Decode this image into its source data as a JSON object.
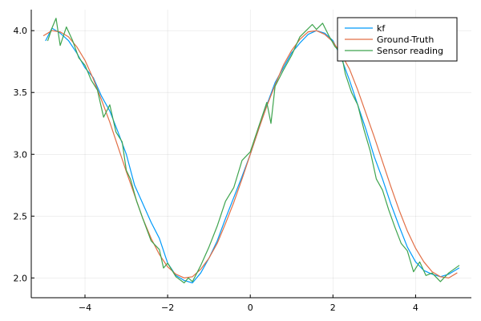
{
  "chart_data": {
    "type": "line",
    "title": "",
    "xlabel": "",
    "ylabel": "",
    "xlim": [
      -5.3,
      5.35
    ],
    "ylim": [
      1.84,
      4.17
    ],
    "grid": true,
    "legend_position": "top-right",
    "x_ticks": [
      {
        "value": -4,
        "label": "−4"
      },
      {
        "value": -2,
        "label": "−2"
      },
      {
        "value": 0,
        "label": "0"
      },
      {
        "value": 2,
        "label": "2"
      },
      {
        "value": 4,
        "label": "4"
      }
    ],
    "y_ticks": [
      {
        "value": 2.0,
        "label": "2.0"
      },
      {
        "value": 2.5,
        "label": "2.5"
      },
      {
        "value": 3.0,
        "label": "3.0"
      },
      {
        "value": 3.5,
        "label": "3.5"
      },
      {
        "value": 4.0,
        "label": "4.0"
      }
    ],
    "series": [
      {
        "name": "kf",
        "color": "#009AFA",
        "x": [
          -4.95,
          -4.8,
          -4.6,
          -4.4,
          -4.2,
          -4.0,
          -3.8,
          -3.6,
          -3.4,
          -3.2,
          -3.0,
          -2.8,
          -2.6,
          -2.4,
          -2.2,
          -2.0,
          -1.8,
          -1.6,
          -1.4,
          -1.2,
          -1.0,
          -0.8,
          -0.6,
          -0.4,
          -0.2,
          0.0,
          0.2,
          0.4,
          0.6,
          0.8,
          1.0,
          1.2,
          1.4,
          1.6,
          1.8,
          2.0,
          2.2,
          2.4,
          2.6,
          2.8,
          3.0,
          3.2,
          3.4,
          3.6,
          3.8,
          4.0,
          4.2,
          4.4,
          4.6,
          4.8,
          5.05
        ],
        "y": [
          3.92,
          4.02,
          3.98,
          3.92,
          3.82,
          3.7,
          3.62,
          3.47,
          3.35,
          3.18,
          3.0,
          2.75,
          2.6,
          2.45,
          2.32,
          2.12,
          2.02,
          1.98,
          1.96,
          2.04,
          2.16,
          2.3,
          2.48,
          2.65,
          2.82,
          3.0,
          3.2,
          3.4,
          3.58,
          3.7,
          3.82,
          3.9,
          3.97,
          4.0,
          3.98,
          3.92,
          3.78,
          3.6,
          3.4,
          3.2,
          2.98,
          2.8,
          2.6,
          2.42,
          2.25,
          2.13,
          2.06,
          2.03,
          2.01,
          2.03,
          2.08
        ]
      },
      {
        "name": "Ground-Truth",
        "color": "#E26F46",
        "x": [
          -5.0,
          -4.8,
          -4.6,
          -4.4,
          -4.2,
          -4.0,
          -3.8,
          -3.6,
          -3.4,
          -3.2,
          -3.0,
          -2.8,
          -2.6,
          -2.4,
          -2.2,
          -2.0,
          -1.8,
          -1.6,
          -1.4,
          -1.2,
          -1.0,
          -0.8,
          -0.6,
          -0.4,
          -0.2,
          0.0,
          0.2,
          0.4,
          0.6,
          0.8,
          1.0,
          1.2,
          1.4,
          1.6,
          1.8,
          2.0,
          2.2,
          2.4,
          2.6,
          2.8,
          3.0,
          3.2,
          3.4,
          3.6,
          3.8,
          4.0,
          4.2,
          4.4,
          4.6,
          4.8,
          5.0
        ],
        "y": [
          3.96,
          4.0,
          3.99,
          3.95,
          3.87,
          3.76,
          3.61,
          3.44,
          3.26,
          3.06,
          2.86,
          2.67,
          2.48,
          2.32,
          2.19,
          2.09,
          2.03,
          2.0,
          2.01,
          2.07,
          2.16,
          2.28,
          2.44,
          2.61,
          2.8,
          3.0,
          3.2,
          3.39,
          3.56,
          3.72,
          3.84,
          3.93,
          3.99,
          4.0,
          3.97,
          3.91,
          3.81,
          3.69,
          3.52,
          3.33,
          3.14,
          2.94,
          2.74,
          2.55,
          2.38,
          2.24,
          2.13,
          2.05,
          2.01,
          2.0,
          2.04
        ]
      },
      {
        "name": "Sensor reading",
        "color": "#3EA44E",
        "x": [
          -4.9,
          -4.8,
          -4.7,
          -4.6,
          -4.45,
          -4.3,
          -4.15,
          -4.0,
          -3.85,
          -3.7,
          -3.55,
          -3.4,
          -3.25,
          -3.1,
          -3.0,
          -2.9,
          -2.75,
          -2.6,
          -2.4,
          -2.2,
          -2.1,
          -2.0,
          -1.8,
          -1.6,
          -1.5,
          -1.4,
          -1.2,
          -1.0,
          -0.8,
          -0.6,
          -0.4,
          -0.2,
          0.0,
          0.2,
          0.4,
          0.5,
          0.6,
          0.8,
          1.0,
          1.2,
          1.35,
          1.5,
          1.6,
          1.75,
          1.9,
          2.05,
          2.2,
          2.3,
          2.45,
          2.6,
          2.75,
          2.9,
          3.05,
          3.2,
          3.35,
          3.5,
          3.65,
          3.8,
          3.95,
          4.1,
          4.25,
          4.4,
          4.6,
          4.8,
          5.05
        ],
        "y": [
          3.92,
          4.02,
          4.1,
          3.88,
          4.03,
          3.92,
          3.78,
          3.72,
          3.6,
          3.52,
          3.3,
          3.4,
          3.18,
          3.1,
          2.87,
          2.8,
          2.62,
          2.48,
          2.3,
          2.23,
          2.08,
          2.12,
          2.01,
          1.96,
          2.0,
          1.97,
          2.1,
          2.25,
          2.42,
          2.62,
          2.73,
          2.95,
          3.02,
          3.22,
          3.42,
          3.25,
          3.55,
          3.68,
          3.8,
          3.95,
          4.0,
          4.05,
          4.01,
          4.06,
          3.96,
          3.87,
          3.82,
          3.65,
          3.5,
          3.4,
          3.2,
          3.03,
          2.8,
          2.71,
          2.55,
          2.41,
          2.28,
          2.22,
          2.05,
          2.13,
          2.02,
          2.04,
          1.97,
          2.04,
          2.1
        ]
      }
    ]
  }
}
